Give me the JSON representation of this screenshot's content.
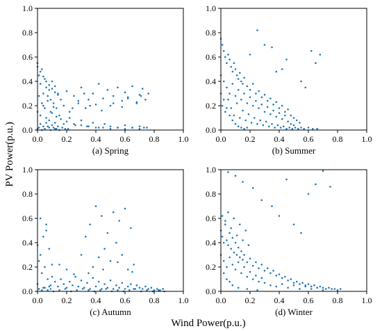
{
  "figure": {
    "ylabel": "PV Power(p.u.)",
    "xlabel": "Wind Power(p.u.)",
    "point_color": "#1f77b4",
    "x_ticks": [
      "0.0",
      "0.2",
      "0.4",
      "0.6",
      "0.8",
      "1.0"
    ],
    "y_ticks": [
      "0.0",
      "0.2",
      "0.4",
      "0.6",
      "0.8",
      "1.0"
    ]
  },
  "chart_data": [
    {
      "type": "scatter",
      "title": "(a) Spring",
      "xlim": [
        0,
        1
      ],
      "ylim": [
        0,
        1
      ],
      "grid": false,
      "x": [
        0.0,
        0.01,
        0.02,
        0.03,
        0.04,
        0.05,
        0.06,
        0.07,
        0.08,
        0.09,
        0.1,
        0.11,
        0.12,
        0.13,
        0.14,
        0.16,
        0.18,
        0.2,
        0.22,
        0.25,
        0.28,
        0.3,
        0.33,
        0.35,
        0.38,
        0.4,
        0.42,
        0.45,
        0.48,
        0.5,
        0.52,
        0.55,
        0.58,
        0.6,
        0.62,
        0.65,
        0.68,
        0.7,
        0.72,
        0.74,
        0.76,
        0.0,
        0.02,
        0.04,
        0.06,
        0.08,
        0.1,
        0.12,
        0.15,
        0.18,
        0.22,
        0.26,
        0.3,
        0.34,
        0.38,
        0.42,
        0.46,
        0.5,
        0.55,
        0.6,
        0.65,
        0.7,
        0.73,
        0.01,
        0.03,
        0.05,
        0.07,
        0.09,
        0.11,
        0.13,
        0.16,
        0.2,
        0.25,
        0.3,
        0.35,
        0.4,
        0.45,
        0.5,
        0.55,
        0.6,
        0.65,
        0.7,
        0.75,
        0.02,
        0.04,
        0.06,
        0.08,
        0.1,
        0.12,
        0.14,
        0.17,
        0.21,
        0.0,
        0.01,
        0.03,
        0.05,
        0.07,
        0.09,
        0.11,
        0.13,
        0.15,
        0.19,
        0.24,
        0.28,
        0.32,
        0.36,
        0.44,
        0.52,
        0.58,
        0.62,
        0.68,
        0.71,
        0.0,
        0.02,
        0.04,
        0.06,
        0.08,
        0.1,
        0.12,
        0.14
      ],
      "y": [
        0.52,
        0.45,
        0.38,
        0.5,
        0.3,
        0.42,
        0.35,
        0.28,
        0.33,
        0.25,
        0.4,
        0.22,
        0.36,
        0.18,
        0.3,
        0.25,
        0.2,
        0.32,
        0.15,
        0.28,
        0.22,
        0.35,
        0.18,
        0.25,
        0.3,
        0.21,
        0.38,
        0.26,
        0.33,
        0.2,
        0.28,
        0.35,
        0.24,
        0.31,
        0.27,
        0.36,
        0.22,
        0.29,
        0.34,
        0.25,
        0.3,
        0.15,
        0.12,
        0.2,
        0.1,
        0.08,
        0.14,
        0.06,
        0.12,
        0.05,
        0.1,
        0.04,
        0.08,
        0.03,
        0.06,
        0.02,
        0.05,
        0.03,
        0.02,
        0.04,
        0.02,
        0.03,
        0.02,
        0.28,
        0.22,
        0.18,
        0.24,
        0.15,
        0.19,
        0.11,
        0.09,
        0.07,
        0.05,
        0.04,
        0.03,
        0.02,
        0.02,
        0.01,
        0.02,
        0.01,
        0.02,
        0.01,
        0.02,
        0.05,
        0.03,
        0.06,
        0.02,
        0.04,
        0.01,
        0.03,
        0.02,
        0.01,
        0.01,
        0.02,
        0.0,
        0.01,
        0.03,
        0.0,
        0.02,
        0.01,
        0.0,
        0.01,
        0.18,
        0.24,
        0.3,
        0.2,
        0.16,
        0.22,
        0.19,
        0.26,
        0.23,
        0.28,
        0.55,
        0.48,
        0.44,
        0.4,
        0.37,
        0.34,
        0.31,
        0.29
      ]
    },
    {
      "type": "scatter",
      "title": "(b) Summer",
      "xlim": [
        0,
        1
      ],
      "ylim": [
        0,
        1
      ],
      "grid": false,
      "x": [
        0.0,
        0.01,
        0.02,
        0.03,
        0.04,
        0.05,
        0.06,
        0.07,
        0.08,
        0.09,
        0.1,
        0.11,
        0.12,
        0.13,
        0.14,
        0.15,
        0.16,
        0.18,
        0.2,
        0.22,
        0.24,
        0.26,
        0.28,
        0.3,
        0.32,
        0.34,
        0.36,
        0.38,
        0.4,
        0.42,
        0.44,
        0.46,
        0.48,
        0.5,
        0.52,
        0.54,
        0.0,
        0.02,
        0.04,
        0.06,
        0.08,
        0.1,
        0.12,
        0.14,
        0.16,
        0.18,
        0.2,
        0.22,
        0.24,
        0.26,
        0.28,
        0.3,
        0.32,
        0.34,
        0.36,
        0.38,
        0.4,
        0.42,
        0.44,
        0.46,
        0.48,
        0.5,
        0.01,
        0.03,
        0.05,
        0.07,
        0.09,
        0.11,
        0.13,
        0.15,
        0.17,
        0.19,
        0.21,
        0.23,
        0.25,
        0.27,
        0.29,
        0.31,
        0.33,
        0.35,
        0.37,
        0.39,
        0.41,
        0.43,
        0.45,
        0.47,
        0.49,
        0.51,
        0.53,
        0.55,
        0.57,
        0.6,
        0.63,
        0.66,
        0.25,
        0.2,
        0.3,
        0.35,
        0.42,
        0.55,
        0.62,
        0.65,
        0.68,
        0.58,
        0.45,
        0.38,
        0.0,
        0.02,
        0.04,
        0.06,
        0.08,
        0.1,
        0.12,
        0.14,
        0.16,
        0.18
      ],
      "y": [
        0.75,
        0.7,
        0.65,
        0.6,
        0.55,
        0.62,
        0.58,
        0.52,
        0.48,
        0.55,
        0.5,
        0.45,
        0.42,
        0.47,
        0.4,
        0.38,
        0.43,
        0.36,
        0.33,
        0.38,
        0.3,
        0.32,
        0.27,
        0.29,
        0.24,
        0.26,
        0.21,
        0.23,
        0.18,
        0.2,
        0.15,
        0.17,
        0.12,
        0.1,
        0.08,
        0.06,
        0.45,
        0.4,
        0.35,
        0.3,
        0.38,
        0.28,
        0.33,
        0.25,
        0.3,
        0.22,
        0.27,
        0.2,
        0.24,
        0.18,
        0.21,
        0.15,
        0.19,
        0.13,
        0.16,
        0.11,
        0.14,
        0.09,
        0.12,
        0.07,
        0.05,
        0.04,
        0.2,
        0.15,
        0.25,
        0.18,
        0.12,
        0.22,
        0.1,
        0.16,
        0.08,
        0.13,
        0.06,
        0.1,
        0.05,
        0.08,
        0.04,
        0.07,
        0.03,
        0.05,
        0.02,
        0.04,
        0.02,
        0.03,
        0.01,
        0.02,
        0.01,
        0.02,
        0.01,
        0.02,
        0.01,
        0.02,
        0.01,
        0.01,
        0.82,
        0.62,
        0.7,
        0.68,
        0.5,
        0.4,
        0.65,
        0.55,
        0.62,
        0.35,
        0.58,
        0.48,
        0.3,
        0.25,
        0.18,
        0.12,
        0.08,
        0.05,
        0.03,
        0.02,
        0.01,
        0.02
      ]
    },
    {
      "type": "scatter",
      "title": "(c) Autumn",
      "xlim": [
        0,
        1
      ],
      "ylim": [
        0,
        1
      ],
      "grid": false,
      "x": [
        0.0,
        0.01,
        0.02,
        0.03,
        0.04,
        0.05,
        0.06,
        0.07,
        0.08,
        0.09,
        0.1,
        0.12,
        0.14,
        0.16,
        0.18,
        0.2,
        0.22,
        0.24,
        0.26,
        0.28,
        0.3,
        0.32,
        0.34,
        0.36,
        0.38,
        0.4,
        0.42,
        0.44,
        0.46,
        0.48,
        0.5,
        0.52,
        0.54,
        0.56,
        0.58,
        0.6,
        0.62,
        0.64,
        0.66,
        0.68,
        0.7,
        0.72,
        0.74,
        0.76,
        0.78,
        0.8,
        0.82,
        0.84,
        0.86,
        0.01,
        0.03,
        0.05,
        0.07,
        0.09,
        0.11,
        0.15,
        0.19,
        0.23,
        0.27,
        0.31,
        0.35,
        0.39,
        0.43,
        0.47,
        0.51,
        0.55,
        0.59,
        0.63,
        0.67,
        0.71,
        0.75,
        0.79,
        0.83,
        0.87,
        0.02,
        0.06,
        0.1,
        0.3,
        0.33,
        0.36,
        0.4,
        0.44,
        0.48,
        0.52,
        0.56,
        0.6,
        0.64,
        0.38,
        0.42,
        0.46,
        0.5,
        0.54,
        0.58,
        0.62,
        0.66,
        0.35,
        0.45,
        0.55,
        0.65,
        0.25,
        0.2,
        0.15,
        0.0,
        0.04,
        0.08
      ],
      "y": [
        0.38,
        0.25,
        0.3,
        0.15,
        0.45,
        0.2,
        0.55,
        0.1,
        0.35,
        0.05,
        0.12,
        0.08,
        0.04,
        0.1,
        0.06,
        0.03,
        0.08,
        0.05,
        0.12,
        0.04,
        0.09,
        0.03,
        0.07,
        0.02,
        0.11,
        0.04,
        0.08,
        0.02,
        0.06,
        0.03,
        0.09,
        0.02,
        0.05,
        0.03,
        0.07,
        0.02,
        0.04,
        0.06,
        0.02,
        0.05,
        0.03,
        0.02,
        0.04,
        0.02,
        0.03,
        0.01,
        0.02,
        0.01,
        0.02,
        0.02,
        0.01,
        0.03,
        0.01,
        0.02,
        0.0,
        0.01,
        0.02,
        0.0,
        0.01,
        0.02,
        0.01,
        0.0,
        0.01,
        0.02,
        0.0,
        0.01,
        0.0,
        0.01,
        0.02,
        0.0,
        0.01,
        0.0,
        0.01,
        0.0,
        0.6,
        0.5,
        0.22,
        0.3,
        0.45,
        0.55,
        0.7,
        0.62,
        0.48,
        0.65,
        0.58,
        0.68,
        0.52,
        0.2,
        0.28,
        0.35,
        0.25,
        0.4,
        0.3,
        0.18,
        0.22,
        0.15,
        0.18,
        0.24,
        0.16,
        0.14,
        0.18,
        0.22,
        0.06,
        0.03,
        0.04
      ]
    },
    {
      "type": "scatter",
      "title": "(d) Winter",
      "xlim": [
        0,
        1
      ],
      "ylim": [
        0,
        1
      ],
      "grid": false,
      "x": [
        0.0,
        0.01,
        0.02,
        0.03,
        0.04,
        0.05,
        0.06,
        0.07,
        0.08,
        0.09,
        0.1,
        0.11,
        0.12,
        0.13,
        0.14,
        0.15,
        0.16,
        0.18,
        0.2,
        0.22,
        0.24,
        0.26,
        0.28,
        0.3,
        0.32,
        0.34,
        0.36,
        0.38,
        0.4,
        0.42,
        0.44,
        0.46,
        0.48,
        0.5,
        0.52,
        0.54,
        0.56,
        0.58,
        0.6,
        0.62,
        0.64,
        0.66,
        0.68,
        0.7,
        0.72,
        0.74,
        0.76,
        0.78,
        0.8,
        0.82,
        0.0,
        0.02,
        0.04,
        0.06,
        0.08,
        0.1,
        0.12,
        0.14,
        0.16,
        0.18,
        0.2,
        0.22,
        0.24,
        0.26,
        0.28,
        0.3,
        0.34,
        0.38,
        0.42,
        0.46,
        0.5,
        0.54,
        0.58,
        0.62,
        0.66,
        0.7,
        0.01,
        0.03,
        0.05,
        0.07,
        0.09,
        0.11,
        0.13,
        0.15,
        0.17,
        0.19,
        0.05,
        0.1,
        0.15,
        0.22,
        0.28,
        0.35,
        0.4,
        0.45,
        0.5,
        0.55,
        0.6,
        0.65,
        0.7,
        0.75,
        0.02,
        0.04,
        0.06,
        0.08,
        0.12,
        0.18,
        0.25
      ],
      "y": [
        0.5,
        0.45,
        0.4,
        0.55,
        0.42,
        0.38,
        0.48,
        0.35,
        0.44,
        0.32,
        0.4,
        0.3,
        0.36,
        0.28,
        0.33,
        0.26,
        0.3,
        0.24,
        0.27,
        0.21,
        0.24,
        0.19,
        0.22,
        0.17,
        0.19,
        0.15,
        0.17,
        0.13,
        0.14,
        0.11,
        0.12,
        0.09,
        0.1,
        0.07,
        0.08,
        0.06,
        0.07,
        0.05,
        0.06,
        0.04,
        0.05,
        0.03,
        0.04,
        0.03,
        0.02,
        0.03,
        0.02,
        0.02,
        0.01,
        0.02,
        0.3,
        0.25,
        0.2,
        0.28,
        0.22,
        0.18,
        0.24,
        0.15,
        0.2,
        0.12,
        0.16,
        0.1,
        0.13,
        0.08,
        0.11,
        0.07,
        0.05,
        0.04,
        0.06,
        0.03,
        0.05,
        0.02,
        0.04,
        0.02,
        0.03,
        0.01,
        0.62,
        0.58,
        0.65,
        0.52,
        0.6,
        0.46,
        0.55,
        0.42,
        0.5,
        0.38,
        0.98,
        0.95,
        0.9,
        0.85,
        0.75,
        0.7,
        0.62,
        0.92,
        0.55,
        0.48,
        0.8,
        0.88,
        0.99,
        0.86,
        0.15,
        0.1,
        0.08,
        0.05,
        0.03,
        0.02,
        0.01
      ]
    }
  ]
}
